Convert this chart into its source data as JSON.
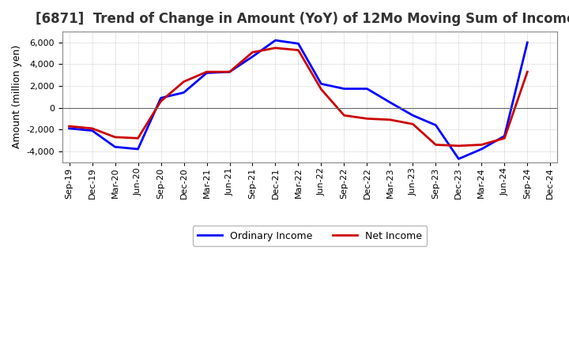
{
  "title": "[6871]  Trend of Change in Amount (YoY) of 12Mo Moving Sum of Incomes",
  "ylabel": "Amount (million yen)",
  "x_labels": [
    "Sep-19",
    "Dec-19",
    "Mar-20",
    "Jun-20",
    "Sep-20",
    "Dec-20",
    "Mar-21",
    "Jun-21",
    "Sep-21",
    "Dec-21",
    "Mar-22",
    "Jun-22",
    "Sep-22",
    "Dec-22",
    "Mar-23",
    "Jun-23",
    "Sep-23",
    "Dec-23",
    "Mar-24",
    "Jun-24",
    "Sep-24",
    "Dec-24"
  ],
  "ordinary_income": [
    -1900,
    -2100,
    -3600,
    -3800,
    900,
    1400,
    3200,
    3300,
    4700,
    6200,
    5900,
    2200,
    1750,
    1750,
    500,
    -700,
    -1600,
    -4700,
    -3800,
    -2600,
    6000,
    null
  ],
  "net_income": [
    -1700,
    -1900,
    -2700,
    -2800,
    600,
    2400,
    3300,
    3300,
    5100,
    5500,
    5300,
    1700,
    -700,
    -1000,
    -1100,
    -1500,
    -3400,
    -3500,
    -3400,
    -2800,
    3300,
    null
  ],
  "ordinary_income_color": "#0000FF",
  "net_income_color": "#CC0000",
  "ylim": [
    -5000,
    7000
  ],
  "yticks": [
    -4000,
    -2000,
    0,
    2000,
    4000,
    6000
  ],
  "background_color": "#FFFFFF",
  "plot_bg_color": "#FFFFFF",
  "grid_color": "#AAAAAA",
  "legend_labels": [
    "Ordinary Income",
    "Net Income"
  ],
  "line_width": 2.0,
  "title_fontsize": 12,
  "tick_fontsize": 8,
  "ylabel_fontsize": 9
}
